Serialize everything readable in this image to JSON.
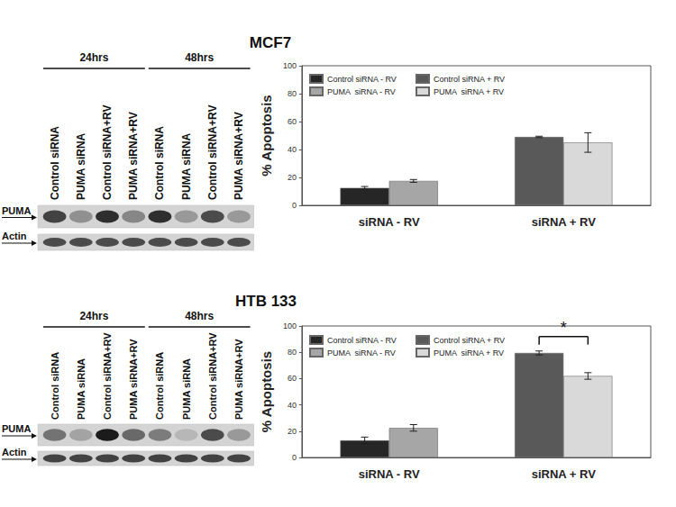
{
  "chart_data": [
    {
      "type": "bar",
      "title": "MCF7",
      "ylabel": "% Apoptosis",
      "categories": [
        "siRNA - RV",
        "siRNA + RV"
      ],
      "series": [
        {
          "name": "Control siRNA - RV",
          "color": "#262626",
          "values": [
            12.5,
            null
          ],
          "errors": [
            1,
            null
          ]
        },
        {
          "name": "PUMA  siRNA - RV",
          "color": "#a6a6a6",
          "values": [
            17.5,
            null
          ],
          "errors": [
            1,
            null
          ]
        },
        {
          "name": "Control siRNA + RV",
          "color": "#595959",
          "values": [
            null,
            49
          ],
          "errors": [
            null,
            0.5
          ]
        },
        {
          "name": "PUMA  siRNA + RV",
          "color": "#d9d9d9",
          "values": [
            null,
            45
          ],
          "errors": [
            null,
            7
          ]
        }
      ],
      "ylim": [
        0,
        100
      ],
      "yticks": [
        0,
        20,
        40,
        60,
        80,
        100
      ],
      "legend": "upper left",
      "grid": false
    },
    {
      "type": "bar",
      "title": "HTB 133",
      "ylabel": "% Apoptosis",
      "categories": [
        "siRNA - RV",
        "siRNA + RV"
      ],
      "series": [
        {
          "name": "Control siRNA - RV",
          "color": "#262626",
          "values": [
            13,
            null
          ],
          "errors": [
            2.5,
            null
          ]
        },
        {
          "name": "PUMA  siRNA - RV",
          "color": "#a6a6a6",
          "values": [
            22.5,
            null
          ],
          "errors": [
            2.5,
            null
          ]
        },
        {
          "name": "Control siRNA + RV",
          "color": "#595959",
          "values": [
            null,
            79.5
          ],
          "errors": [
            null,
            1.5
          ]
        },
        {
          "name": "PUMA  siRNA + RV",
          "color": "#d9d9d9",
          "values": [
            null,
            62
          ],
          "errors": [
            null,
            2.5
          ]
        }
      ],
      "ylim": [
        0,
        100
      ],
      "yticks": [
        0,
        20,
        40,
        60,
        80,
        100
      ],
      "legend": "upper left",
      "grid": false,
      "annotations": [
        {
          "text": "*",
          "category": "siRNA + RV",
          "between": [
            "Control siRNA + RV",
            "PUMA  siRNA + RV"
          ],
          "y": 92
        }
      ]
    }
  ],
  "blots": [
    {
      "groups": [
        {
          "label": "24hrs",
          "lanes": [
            "Control siRNA",
            "PUMA siRNA",
            "Control siRNA+RV",
            "PUMA siRNA+RV"
          ]
        },
        {
          "label": "48hrs",
          "lanes": [
            "Control siRNA",
            "PUMA siRNA",
            "Control siRNA+RV",
            "PUMA siRNA+RV"
          ]
        }
      ],
      "rows": [
        {
          "label": "PUMA",
          "intensity": [
            0.75,
            0.35,
            0.85,
            0.4,
            0.85,
            0.3,
            0.7,
            0.3
          ]
        },
        {
          "label": "Actin",
          "intensity": [
            0.7,
            0.7,
            0.7,
            0.7,
            0.7,
            0.7,
            0.7,
            0.7
          ]
        }
      ]
    },
    {
      "groups": [
        {
          "label": "24hrs",
          "lanes": [
            "Control siRNA",
            "PUMA siRNA",
            "Control siRNA+RV",
            "PUMA siRNA+RV"
          ]
        },
        {
          "label": "48hrs",
          "lanes": [
            "Control siRNA",
            "PUMA siRNA",
            "Control siRNA+RV",
            "PUMA siRNA+RV"
          ]
        }
      ],
      "rows": [
        {
          "label": "PUMA",
          "intensity": [
            0.5,
            0.25,
            0.95,
            0.55,
            0.45,
            0.15,
            0.7,
            0.3
          ]
        },
        {
          "label": "Actin",
          "intensity": [
            0.75,
            0.75,
            0.75,
            0.75,
            0.75,
            0.75,
            0.75,
            0.75
          ]
        }
      ]
    }
  ]
}
